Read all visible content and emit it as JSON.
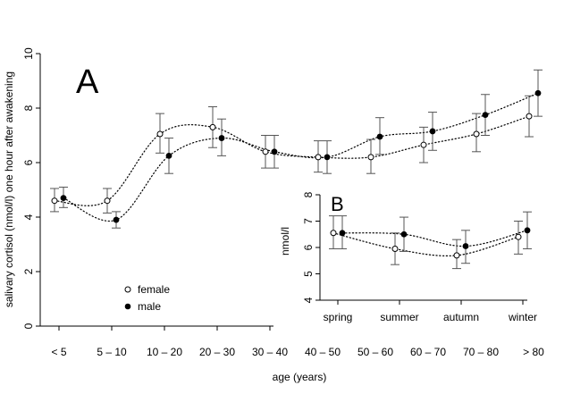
{
  "chart_data": [
    {
      "panel": "A",
      "type": "scatter",
      "panel_label": "A",
      "ylabel": "salivary cortisol (nmol/l) one hour after awakening",
      "xlabel": "age (years)",
      "ylim": [
        0,
        10
      ],
      "yticks": [
        0,
        2,
        4,
        6,
        8,
        10
      ],
      "categories": [
        "< 5",
        "5 – 10",
        "10 – 20",
        "20 – 30",
        "30 – 40",
        "40 – 50",
        "50 – 60",
        "60 – 70",
        "70 – 80",
        "> 80"
      ],
      "grid": false,
      "legend_position": "lower-left",
      "series": [
        {
          "name": "female",
          "marker": "open-circle",
          "values": [
            4.6,
            4.6,
            7.05,
            7.3,
            6.4,
            6.2,
            6.2,
            6.65,
            7.05,
            7.7
          ],
          "lower": [
            4.2,
            4.15,
            6.35,
            6.55,
            5.8,
            5.65,
            5.6,
            6.0,
            6.4,
            6.95
          ],
          "upper": [
            5.05,
            5.05,
            7.8,
            8.05,
            7.0,
            6.8,
            6.85,
            7.3,
            7.8,
            8.45
          ]
        },
        {
          "name": "male",
          "marker": "filled-circle",
          "values": [
            4.7,
            3.9,
            6.25,
            6.9,
            6.4,
            6.2,
            6.95,
            7.15,
            7.75,
            8.55
          ],
          "lower": [
            4.35,
            3.6,
            5.6,
            6.25,
            5.8,
            5.6,
            6.3,
            6.45,
            7.0,
            7.7
          ],
          "upper": [
            5.1,
            4.2,
            6.9,
            7.6,
            7.0,
            6.8,
            7.65,
            7.85,
            8.5,
            9.4
          ]
        }
      ]
    },
    {
      "panel": "B",
      "type": "scatter",
      "panel_label": "B",
      "ylabel": "nmol/l",
      "xlabel": "",
      "ylim": [
        4,
        8
      ],
      "yticks": [
        4,
        5,
        6,
        7,
        8
      ],
      "categories": [
        "spring",
        "summer",
        "autumn",
        "winter"
      ],
      "grid": false,
      "series": [
        {
          "name": "female",
          "marker": "open-circle",
          "values": [
            6.55,
            5.95,
            5.7,
            6.4
          ],
          "lower": [
            5.95,
            5.35,
            5.2,
            5.75
          ],
          "upper": [
            7.2,
            6.55,
            6.3,
            7.0
          ]
        },
        {
          "name": "male",
          "marker": "filled-circle",
          "values": [
            6.55,
            6.5,
            6.05,
            6.65
          ],
          "lower": [
            5.95,
            5.85,
            5.4,
            5.95
          ],
          "upper": [
            7.2,
            7.15,
            6.65,
            7.35
          ]
        }
      ]
    }
  ]
}
